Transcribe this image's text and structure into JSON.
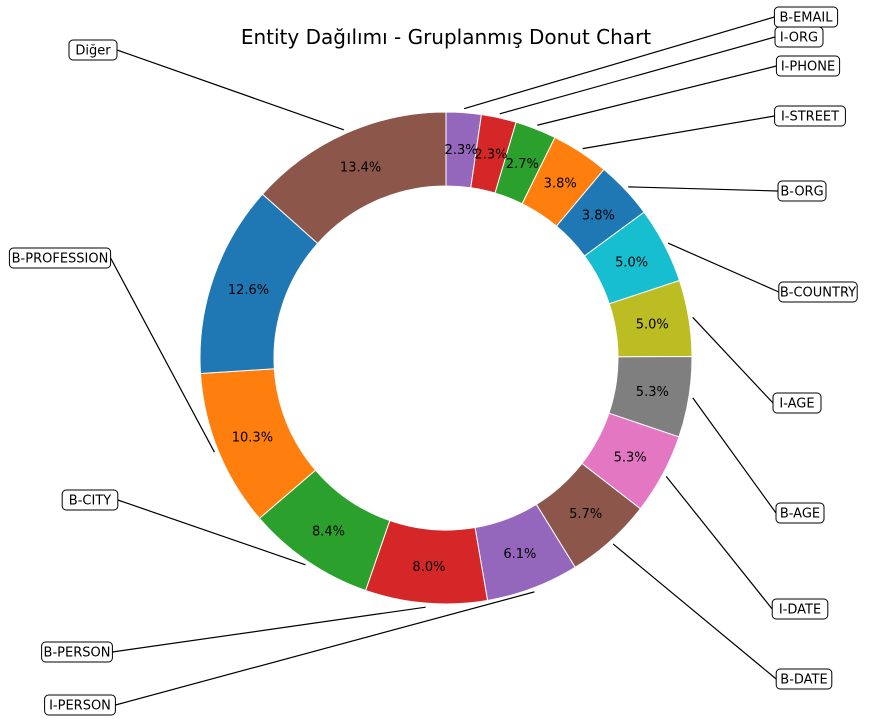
{
  "chart_data": {
    "type": "pie",
    "donut": true,
    "title": "Entity Dağılımı - Gruplanmış Donut Chart",
    "slices": [
      {
        "label": "B-EMAIL",
        "pct_label": "2.3%",
        "value": 2.3,
        "color": "#9467bd"
      },
      {
        "label": "I-ORG",
        "pct_label": "2.3%",
        "value": 2.3,
        "color": "#d62728"
      },
      {
        "label": "I-PHONE",
        "pct_label": "2.7%",
        "value": 2.7,
        "color": "#2ca02c"
      },
      {
        "label": "I-STREET",
        "pct_label": "3.8%",
        "value": 3.8,
        "color": "#ff7f0e"
      },
      {
        "label": "B-ORG",
        "pct_label": "3.8%",
        "value": 3.8,
        "color": "#1f77b4"
      },
      {
        "label": "B-COUNTRY",
        "pct_label": "5.0%",
        "value": 5.0,
        "color": "#17becf"
      },
      {
        "label": "I-AGE",
        "pct_label": "5.0%",
        "value": 5.0,
        "color": "#bcbd22"
      },
      {
        "label": "B-AGE",
        "pct_label": "5.3%",
        "value": 5.3,
        "color": "#7f7f7f"
      },
      {
        "label": "I-DATE",
        "pct_label": "5.3%",
        "value": 5.3,
        "color": "#e377c2"
      },
      {
        "label": "B-DATE",
        "pct_label": "5.7%",
        "value": 5.7,
        "color": "#8c564b"
      },
      {
        "label": "I-PERSON",
        "pct_label": "6.1%",
        "value": 6.1,
        "color": "#9467bd"
      },
      {
        "label": "B-PERSON",
        "pct_label": "8.0%",
        "value": 8.0,
        "color": "#d62728"
      },
      {
        "label": "B-CITY",
        "pct_label": "8.4%",
        "value": 8.4,
        "color": "#2ca02c"
      },
      {
        "label": "B-PROFESSION",
        "pct_label": "10.3%",
        "value": 10.3,
        "color": "#ff7f0e"
      },
      {
        "label": "Diğer",
        "pct_label": "12.6%",
        "value": 12.6,
        "color": "#1f77b4"
      },
      {
        "label": "",
        "pct_label": "13.4%",
        "value": 13.4,
        "color": "#8c564b"
      }
    ],
    "legend": "none"
  }
}
